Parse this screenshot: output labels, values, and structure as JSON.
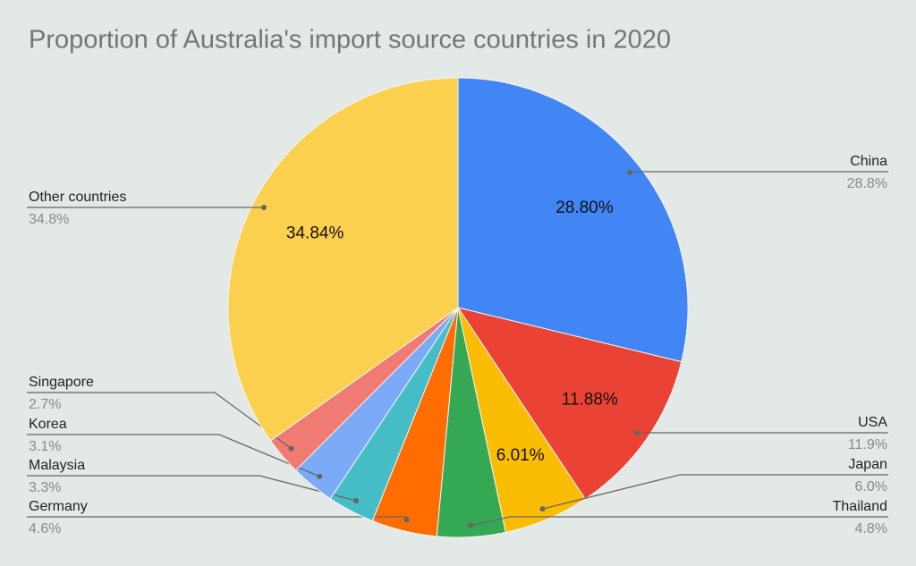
{
  "chart_data": {
    "type": "pie",
    "title": "Proportion of Australia's import source countries in 2020",
    "categories": [
      "China",
      "USA",
      "Japan",
      "Thailand",
      "Germany",
      "Malaysia",
      "Korea",
      "Singapore",
      "Other countries"
    ],
    "values": [
      28.8,
      11.88,
      6.01,
      4.8,
      4.6,
      3.3,
      3.1,
      2.7,
      34.84
    ],
    "value_labels": [
      "28.80%",
      "11.88%",
      "6.01%",
      null,
      null,
      null,
      null,
      null,
      "34.84%"
    ],
    "legend_labels": [
      "28.8%",
      "11.9%",
      "6.0%",
      "4.8%",
      "4.6%",
      "3.3%",
      "3.1%",
      "2.7%",
      "34.8%"
    ],
    "colors": [
      "#4285f4",
      "#ea4335",
      "#fbbc04",
      "#34a853",
      "#ff6d01",
      "#46bdc6",
      "#7baaf7",
      "#f07b72",
      "#fcd04f"
    ]
  }
}
